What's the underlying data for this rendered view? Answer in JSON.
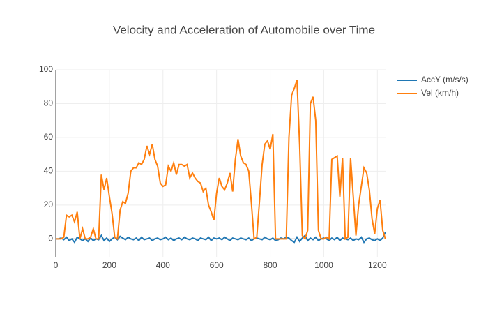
{
  "chart_data": {
    "type": "line",
    "title": "Velocity and Acceleration of Automobile over Time",
    "x": [
      0,
      10,
      20,
      30,
      40,
      50,
      60,
      70,
      80,
      90,
      100,
      110,
      120,
      130,
      140,
      150,
      160,
      170,
      180,
      190,
      200,
      210,
      220,
      230,
      240,
      250,
      260,
      270,
      280,
      290,
      300,
      310,
      320,
      330,
      340,
      350,
      360,
      370,
      380,
      390,
      400,
      410,
      420,
      430,
      440,
      450,
      460,
      470,
      480,
      490,
      500,
      510,
      520,
      530,
      540,
      550,
      560,
      570,
      580,
      590,
      600,
      610,
      620,
      630,
      640,
      650,
      660,
      670,
      680,
      690,
      700,
      710,
      720,
      730,
      740,
      750,
      760,
      770,
      780,
      790,
      800,
      810,
      820,
      830,
      840,
      850,
      860,
      870,
      880,
      890,
      900,
      910,
      920,
      930,
      940,
      950,
      960,
      970,
      980,
      990,
      1000,
      1010,
      1020,
      1030,
      1040,
      1050,
      1060,
      1070,
      1080,
      1090,
      1100,
      1110,
      1120,
      1130,
      1140,
      1150,
      1160,
      1170,
      1180,
      1190,
      1200,
      1210,
      1220,
      1230
    ],
    "series": [
      {
        "name": "AccY (m/s/s)",
        "color": "#1f77b4",
        "values": [
          0,
          0,
          0.5,
          -0.5,
          1,
          -1,
          0,
          -2,
          1,
          0,
          -1,
          0,
          -1.5,
          0.5,
          -1,
          0,
          -0.5,
          2,
          -1,
          0.5,
          -1.5,
          0,
          1,
          -0.5,
          1.5,
          0.5,
          -0.5,
          1,
          0,
          -0.5,
          0.5,
          -1,
          1,
          -0.5,
          0,
          0.5,
          -1,
          0,
          0.5,
          -0.5,
          0,
          1,
          -0.5,
          0.5,
          -1,
          0,
          0.5,
          -0.5,
          1,
          0,
          -0.5,
          0.5,
          0,
          -1,
          0.5,
          0,
          -0.5,
          1,
          -1,
          0.5,
          0,
          0.5,
          -0.5,
          1,
          0,
          -1,
          0.5,
          0,
          -0.5,
          0.5,
          0,
          -0.5,
          0.5,
          -1,
          0,
          0.5,
          0,
          -0.5,
          1,
          0,
          -0.5,
          0.5,
          -1,
          -0.5,
          0.5,
          0,
          1,
          0.5,
          -1,
          -2,
          1,
          -1.5,
          0.5,
          2,
          -1,
          0.5,
          -0.5,
          1,
          -1,
          0,
          0.5,
          0,
          -1,
          0.5,
          -0.5,
          1,
          -1,
          0.5,
          0,
          -0.5,
          0.5,
          -1,
          0,
          -0.5,
          1,
          -2,
          0,
          0.5,
          -0.5,
          -1,
          0,
          -1,
          0.5,
          4
        ]
      },
      {
        "name": "Vel (km/h)",
        "color": "#ff7f0e",
        "values": [
          0,
          0,
          0,
          1,
          14,
          13,
          14,
          10,
          16,
          0,
          6,
          0,
          0,
          1,
          6,
          0,
          0,
          38,
          29,
          36,
          25,
          15,
          1,
          0,
          17,
          22,
          21,
          27,
          40,
          42,
          42,
          45,
          44,
          47,
          55,
          50,
          56,
          47,
          43,
          33,
          31,
          32,
          43,
          40,
          45,
          38,
          44,
          44,
          43,
          44,
          36,
          39,
          36,
          34,
          33,
          28,
          30,
          20,
          16,
          11,
          27,
          36,
          31,
          29,
          33,
          39,
          28,
          47,
          59,
          49,
          45,
          44,
          40,
          21,
          0,
          1,
          22,
          44,
          56,
          58,
          53,
          62,
          0,
          0,
          0,
          0,
          0,
          60,
          85,
          89,
          94,
          55,
          2,
          0,
          5,
          80,
          84,
          70,
          5,
          0,
          0,
          1,
          0,
          47,
          48,
          49,
          25,
          48,
          0,
          1,
          48,
          25,
          2,
          20,
          31,
          42,
          39,
          29,
          12,
          3,
          18,
          23,
          5,
          0
        ]
      }
    ],
    "xlim": [
      0,
      1233
    ],
    "ylim": [
      -11,
      100
    ],
    "xticks": [
      0,
      200,
      400,
      600,
      800,
      1000,
      1200
    ],
    "yticks": [
      0,
      20,
      40,
      60,
      80,
      100
    ],
    "grid": true
  }
}
